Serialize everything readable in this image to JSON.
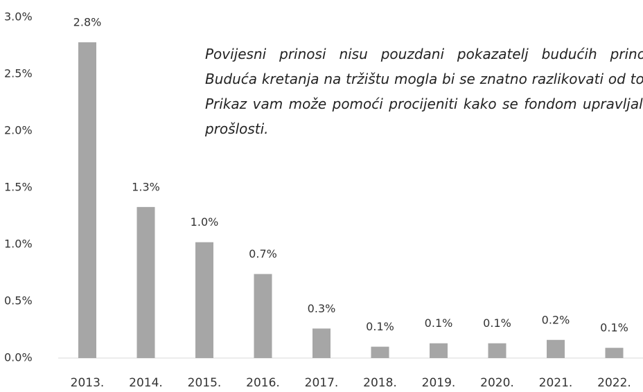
{
  "chart_data": {
    "type": "bar",
    "categories": [
      "2013.",
      "2014.",
      "2015.",
      "2016.",
      "2017.",
      "2018.",
      "2019.",
      "2020.",
      "2021.",
      "2022."
    ],
    "values": [
      2.78,
      1.33,
      1.02,
      0.74,
      0.26,
      0.1,
      0.13,
      0.13,
      0.16,
      0.09
    ],
    "value_labels": [
      "2.8%",
      "1.3%",
      "1.0%",
      "0.7%",
      "0.3%",
      "0.1%",
      "0.1%",
      "0.1%",
      "0.2%",
      "0.1%"
    ],
    "color": "#a6a6a6",
    "ylim": [
      0,
      3
    ],
    "yticks": [
      {
        "value": 0,
        "label": "0.0%"
      },
      {
        "value": 0.5,
        "label": "0.5%"
      },
      {
        "value": 1,
        "label": "1.0%"
      },
      {
        "value": 1.5,
        "label": "1.5%"
      },
      {
        "value": 2,
        "label": "2.0%"
      },
      {
        "value": 2.5,
        "label": "2.5%"
      },
      {
        "value": 3,
        "label": "3.0%"
      }
    ],
    "annotation": "Povijesni prinosi nisu pouzdani pokazatelj budućih prinosa. Buduća kretanja na tržištu mogla bi se znatno razlikovati od toga. Prikaz vam može pomoći procijeniti kako se fondom upravljalo u prošlosti."
  }
}
